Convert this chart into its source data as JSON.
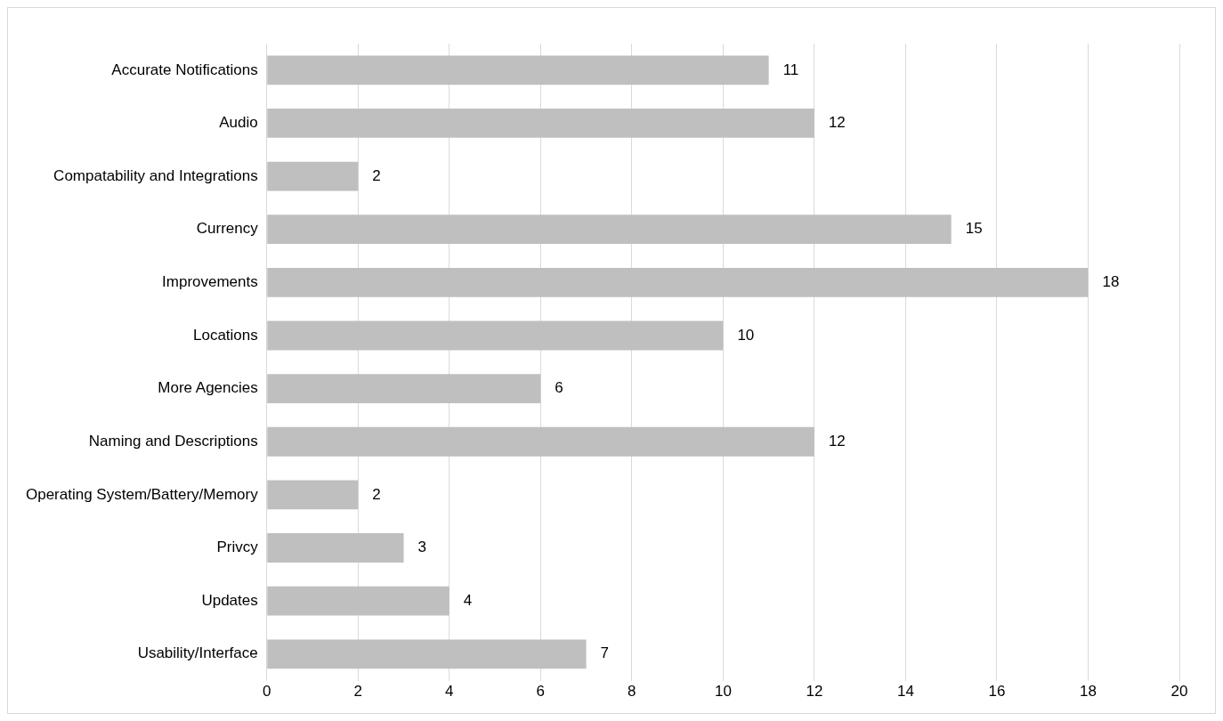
{
  "chart_data": {
    "type": "bar",
    "orientation": "horizontal",
    "categories": [
      "Accurate Notifications",
      "Audio",
      "Compatability and Integrations",
      "Currency",
      "Improvements",
      "Locations",
      "More Agencies",
      "Naming and Descriptions",
      "Operating System/Battery/Memory",
      "Privcy",
      "Updates",
      "Usability/Interface"
    ],
    "values": [
      11,
      12,
      2,
      15,
      18,
      10,
      6,
      12,
      2,
      3,
      4,
      7
    ],
    "color": "#bfbfbf",
    "xlim": [
      0,
      20
    ],
    "xticks": [
      0,
      2,
      4,
      6,
      8,
      10,
      12,
      14,
      16,
      18,
      20
    ],
    "grid": "x",
    "data_labels": true,
    "legend": false
  }
}
